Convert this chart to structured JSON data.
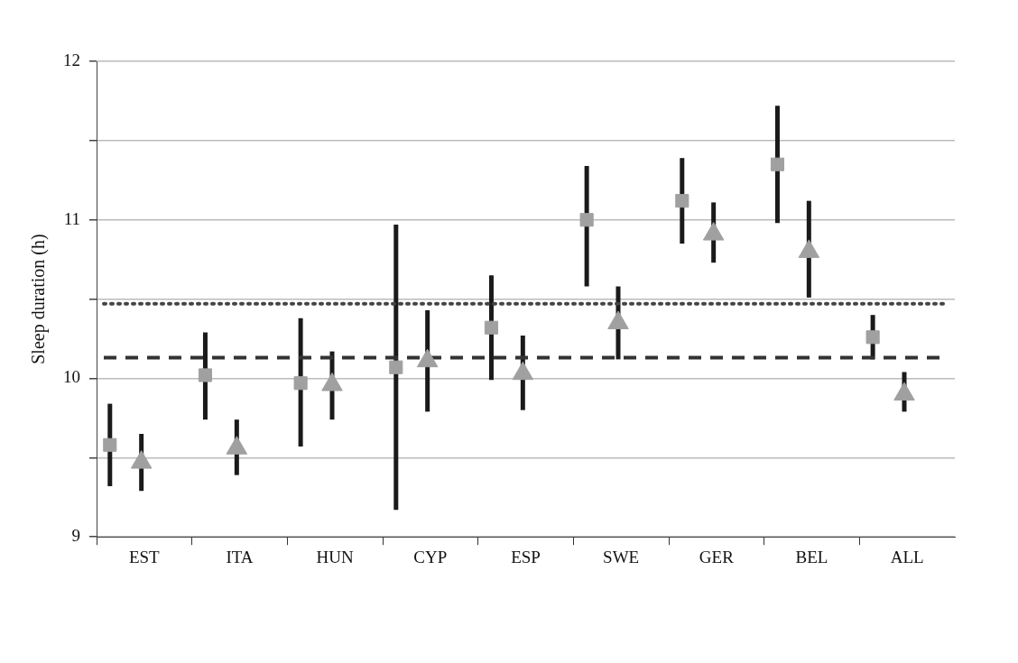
{
  "chart_data": {
    "type": "scatter",
    "ylabel": "Sleep duration (h)",
    "categories": [
      "EST",
      "ITA",
      "HUN",
      "CYP",
      "ESP",
      "SWE",
      "GER",
      "BEL",
      "ALL"
    ],
    "series": [
      {
        "color": "#a0a0a0",
        "marker": "square",
        "values": [
          9.58,
          10.02,
          9.97,
          10.07,
          10.32,
          11.0,
          11.12,
          11.35,
          10.26
        ],
        "errors": [
          [
            9.32,
            9.84
          ],
          [
            9.74,
            10.29
          ],
          [
            9.57,
            10.38
          ],
          [
            9.17,
            10.97
          ],
          [
            9.99,
            10.65
          ],
          [
            10.58,
            11.34
          ],
          [
            10.85,
            11.39
          ],
          [
            10.98,
            11.72
          ],
          [
            10.12,
            10.4
          ]
        ]
      },
      {
        "color": "#a0a0a0",
        "marker": "triangle",
        "values": [
          9.47,
          9.56,
          9.96,
          10.11,
          10.03,
          10.35,
          10.91,
          10.8,
          9.9
        ],
        "errors": [
          [
            9.29,
            9.65
          ],
          [
            9.39,
            9.74
          ],
          [
            9.74,
            10.17
          ],
          [
            9.79,
            10.43
          ],
          [
            9.8,
            10.27
          ],
          [
            10.12,
            10.58
          ],
          [
            10.73,
            11.11
          ],
          [
            10.51,
            11.12
          ],
          [
            9.79,
            10.04
          ]
        ]
      }
    ],
    "ylim": [
      9,
      12
    ],
    "yticks": [
      9,
      {
        "value": 9.5,
        "label": null
      },
      10,
      {
        "value": 10.5,
        "label": null
      },
      11,
      {
        "value": 11.5,
        "label": null
      },
      12
    ],
    "ref_lines": [
      {
        "axis": "y",
        "value": 10.47,
        "line_style": "dotted",
        "color": "#444444"
      },
      {
        "axis": "y",
        "value": 10.13,
        "line_style": "dashed",
        "color": "#333333"
      }
    ],
    "grid": "y",
    "legend": false
  }
}
